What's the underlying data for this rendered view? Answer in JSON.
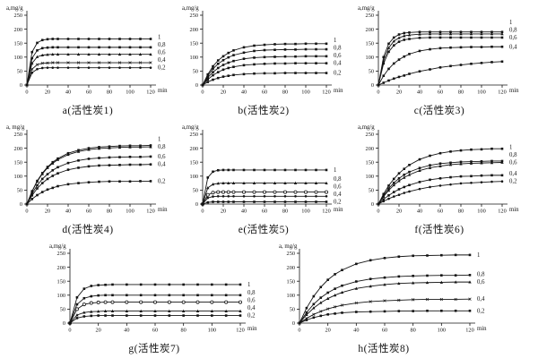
{
  "colors": {
    "line": "#141414",
    "text": "#141414",
    "background": "#ffffff"
  },
  "chart_data": [
    {
      "id": "a",
      "type": "line",
      "caption": "a(活性炭1)",
      "ylabel": "a,mg/g",
      "x_unit": "min",
      "ylim": [
        0,
        250
      ],
      "y_ticks": [
        0,
        50,
        100,
        150,
        200,
        250
      ],
      "x_ticks": [
        0,
        20,
        40,
        60,
        80,
        100,
        120
      ],
      "x": [
        0,
        5,
        10,
        15,
        20,
        25,
        30,
        40,
        50,
        60,
        70,
        80,
        90,
        100,
        110,
        120
      ],
      "series": [
        {
          "name": "1",
          "marker": "square",
          "values": [
            0,
            118,
            151,
            161,
            164,
            165,
            165,
            165,
            165,
            165,
            165,
            165,
            165,
            165,
            165,
            165
          ]
        },
        {
          "name": "0,8",
          "marker": "square",
          "values": [
            0,
            96,
            124,
            132,
            134,
            135,
            135,
            135,
            135,
            135,
            135,
            135,
            135,
            135,
            135,
            135
          ]
        },
        {
          "name": "0,6",
          "marker": "triangle",
          "values": [
            0,
            78,
            101,
            107,
            109,
            110,
            110,
            110,
            110,
            110,
            110,
            110,
            110,
            110,
            110,
            110
          ]
        },
        {
          "name": "0,4",
          "marker": "x",
          "values": [
            0,
            57,
            73,
            78,
            79,
            80,
            80,
            80,
            80,
            80,
            80,
            80,
            80,
            80,
            80,
            80
          ]
        },
        {
          "name": "0,2",
          "marker": "circle",
          "values": [
            0,
            44,
            57,
            61,
            62,
            62,
            62,
            62,
            62,
            62,
            62,
            62,
            62,
            62,
            62,
            62
          ]
        }
      ]
    },
    {
      "id": "b",
      "type": "line",
      "caption": "b(活性炭2)",
      "ylabel": "a,mg/g",
      "x_unit": "min",
      "ylim": [
        0,
        250
      ],
      "y_ticks": [
        0,
        50,
        100,
        150,
        200,
        250
      ],
      "x_ticks": [
        0,
        20,
        40,
        60,
        80,
        100,
        120
      ],
      "x": [
        0,
        5,
        10,
        15,
        20,
        25,
        30,
        40,
        50,
        60,
        70,
        80,
        90,
        100,
        110,
        120
      ],
      "series": [
        {
          "name": "1",
          "marker": "square",
          "values": [
            0,
            38,
            67,
            88,
            103,
            115,
            124,
            135,
            141,
            144,
            146,
            147,
            147,
            148,
            148,
            148
          ]
        },
        {
          "name": "0,8",
          "marker": "square",
          "values": [
            0,
            33,
            58,
            76,
            89,
            99,
            107,
            116,
            122,
            125,
            126,
            127,
            127,
            128,
            128,
            128
          ]
        },
        {
          "name": "0,6",
          "marker": "square",
          "values": [
            0,
            27,
            46,
            61,
            72,
            80,
            86,
            94,
            98,
            100,
            101,
            102,
            102,
            103,
            103,
            103
          ]
        },
        {
          "name": "0,4",
          "marker": "square",
          "values": [
            0,
            20,
            35,
            46,
            55,
            61,
            65,
            71,
            74,
            76,
            77,
            77,
            78,
            78,
            78,
            78
          ]
        },
        {
          "name": "0,2",
          "marker": "square",
          "values": [
            0,
            11,
            19,
            25,
            30,
            33,
            36,
            39,
            41,
            42,
            42,
            43,
            43,
            43,
            43,
            43
          ]
        }
      ]
    },
    {
      "id": "c",
      "type": "line",
      "caption": "c(活性炭3)",
      "ylabel": "a,mg/g",
      "x_unit": "min",
      "ylim": [
        0,
        250
      ],
      "y_ticks": [
        0,
        50,
        100,
        150,
        200,
        250
      ],
      "x_ticks": [
        0,
        20,
        40,
        60,
        80,
        100,
        120
      ],
      "x": [
        0,
        5,
        10,
        15,
        20,
        25,
        30,
        40,
        50,
        60,
        70,
        80,
        90,
        100,
        110,
        120
      ],
      "series": [
        {
          "name": "1",
          "marker": "square",
          "values": [
            0,
            100,
            148,
            170,
            181,
            186,
            188,
            190,
            190,
            190,
            190,
            190,
            190,
            190,
            190,
            190
          ]
        },
        {
          "name": "0,8",
          "marker": "triangle",
          "values": [
            0,
            87,
            133,
            157,
            169,
            176,
            179,
            182,
            183,
            183,
            183,
            183,
            183,
            183,
            183,
            183
          ]
        },
        {
          "name": "0,6",
          "marker": "square",
          "values": [
            0,
            77,
            119,
            142,
            155,
            162,
            165,
            169,
            170,
            170,
            170,
            170,
            170,
            170,
            170,
            170
          ]
        },
        {
          "name": "0,4",
          "marker": "square",
          "values": [
            0,
            33,
            58,
            77,
            91,
            102,
            111,
            122,
            128,
            132,
            134,
            135,
            136,
            136,
            137,
            137
          ]
        },
        {
          "name": "",
          "marker": "square",
          "values": [
            0,
            8,
            16,
            23,
            29,
            34,
            40,
            49,
            56,
            63,
            68,
            72,
            76,
            79,
            82,
            84
          ]
        }
      ]
    },
    {
      "id": "d",
      "type": "line",
      "caption": "d(活性炭4)",
      "ylabel": "a, mg/g",
      "x_unit": "min",
      "ylim": [
        0,
        250
      ],
      "y_ticks": [
        0,
        50,
        100,
        150,
        200,
        250
      ],
      "x_ticks": [
        0,
        20,
        40,
        60,
        80,
        100,
        120
      ],
      "x": [
        0,
        5,
        10,
        15,
        20,
        25,
        30,
        40,
        50,
        60,
        70,
        80,
        90,
        100,
        110,
        120
      ],
      "series": [
        {
          "name": "1",
          "marker": "square",
          "values": [
            0,
            46,
            83,
            111,
            133,
            150,
            163,
            182,
            193,
            200,
            204,
            206,
            208,
            209,
            209,
            210
          ]
        },
        {
          "name": "0,8",
          "marker": "triangle",
          "values": [
            0,
            45,
            81,
            108,
            130,
            146,
            159,
            177,
            188,
            195,
            199,
            201,
            203,
            204,
            204,
            205
          ]
        },
        {
          "name": "0,6",
          "marker": "square",
          "values": [
            0,
            38,
            67,
            90,
            107,
            121,
            132,
            147,
            156,
            162,
            165,
            167,
            168,
            169,
            169,
            170
          ]
        },
        {
          "name": "0,4",
          "marker": "square",
          "values": [
            0,
            31,
            56,
            75,
            90,
            101,
            110,
            123,
            130,
            135,
            138,
            139,
            140,
            141,
            141,
            142
          ]
        },
        {
          "name": "0,2",
          "marker": "square",
          "values": [
            0,
            18,
            32,
            43,
            52,
            58,
            64,
            71,
            75,
            78,
            80,
            81,
            81,
            81,
            82,
            82
          ]
        }
      ]
    },
    {
      "id": "e",
      "type": "line",
      "caption": "e(活性炭5)",
      "ylabel": "a,mg/g",
      "x_unit": "min",
      "ylim": [
        0,
        250
      ],
      "y_ticks": [
        0,
        50,
        100,
        150,
        200,
        250
      ],
      "x_ticks": [
        0,
        20,
        40,
        60,
        80,
        100,
        120
      ],
      "x": [
        0,
        5,
        10,
        15,
        20,
        25,
        30,
        40,
        50,
        60,
        70,
        80,
        90,
        100,
        110,
        120
      ],
      "series": [
        {
          "name": "1",
          "marker": "square",
          "values": [
            0,
            95,
            116,
            121,
            122,
            122,
            122,
            122,
            122,
            122,
            122,
            122,
            122,
            122,
            122,
            122
          ]
        },
        {
          "name": "0,8",
          "marker": "triangle",
          "values": [
            0,
            58,
            71,
            74,
            75,
            75,
            75,
            75,
            75,
            75,
            75,
            75,
            75,
            75,
            75,
            75
          ]
        },
        {
          "name": "0,6",
          "marker": "circle-open",
          "values": [
            0,
            33,
            41,
            43,
            43,
            43,
            43,
            43,
            43,
            43,
            43,
            43,
            43,
            43,
            43,
            43
          ]
        },
        {
          "name": "0,4",
          "marker": "circle",
          "values": [
            0,
            22,
            27,
            28,
            28,
            28,
            28,
            28,
            28,
            28,
            28,
            28,
            28,
            28,
            28,
            28
          ]
        },
        {
          "name": "0,2",
          "marker": "square",
          "values": [
            0,
            6,
            8,
            8,
            8,
            8,
            8,
            8,
            8,
            8,
            8,
            8,
            8,
            8,
            8,
            8
          ]
        }
      ]
    },
    {
      "id": "f",
      "type": "line",
      "caption": "f(活性炭6)",
      "ylabel": "a,mg/g",
      "x_unit": "min",
      "ylim": [
        0,
        250
      ],
      "y_ticks": [
        0,
        50,
        100,
        150,
        200,
        250
      ],
      "x_ticks": [
        0,
        20,
        40,
        60,
        80,
        100,
        120
      ],
      "x": [
        0,
        5,
        10,
        15,
        20,
        25,
        30,
        40,
        50,
        60,
        70,
        80,
        90,
        100,
        110,
        120
      ],
      "series": [
        {
          "name": "1",
          "marker": "square",
          "values": [
            0,
            36,
            66,
            90,
            110,
            126,
            140,
            160,
            173,
            182,
            188,
            192,
            195,
            196,
            198,
            198
          ]
        },
        {
          "name": "0,8",
          "marker": "square",
          "values": [
            0,
            31,
            56,
            76,
            92,
            105,
            115,
            129,
            139,
            145,
            148,
            151,
            152,
            153,
            154,
            154
          ]
        },
        {
          "name": "0,6",
          "marker": "triangle",
          "values": [
            0,
            27,
            49,
            68,
            83,
            95,
            105,
            120,
            130,
            136,
            141,
            144,
            146,
            147,
            148,
            149
          ]
        },
        {
          "name": "0,4",
          "marker": "square",
          "values": [
            0,
            17,
            31,
            43,
            53,
            61,
            68,
            79,
            87,
            92,
            96,
            99,
            100,
            102,
            103,
            103
          ]
        },
        {
          "name": "0,2",
          "marker": "circle",
          "values": [
            0,
            10,
            19,
            27,
            33,
            40,
            45,
            54,
            61,
            66,
            70,
            74,
            76,
            78,
            80,
            81
          ]
        }
      ]
    },
    {
      "id": "g",
      "type": "line",
      "caption": "g(活性炭7)",
      "ylabel": "a,mg/g",
      "x_unit": "min",
      "ylim": [
        0,
        250
      ],
      "y_ticks": [
        0,
        50,
        100,
        150,
        200,
        250
      ],
      "x_ticks": [
        0,
        20,
        40,
        60,
        80,
        100,
        120
      ],
      "x": [
        0,
        5,
        10,
        15,
        20,
        25,
        30,
        40,
        50,
        60,
        70,
        80,
        90,
        100,
        110,
        120
      ],
      "series": [
        {
          "name": "1",
          "marker": "square",
          "values": [
            0,
            92,
            123,
            133,
            136,
            137,
            138,
            138,
            138,
            138,
            138,
            138,
            138,
            138,
            138,
            138
          ]
        },
        {
          "name": "0,8",
          "marker": "square",
          "values": [
            0,
            67,
            89,
            96,
            99,
            100,
            100,
            100,
            100,
            100,
            100,
            100,
            100,
            100,
            100,
            100
          ]
        },
        {
          "name": "0,6",
          "marker": "circle-open",
          "values": [
            0,
            50,
            67,
            72,
            74,
            75,
            75,
            75,
            75,
            75,
            75,
            75,
            75,
            75,
            75,
            75
          ]
        },
        {
          "name": "0,4",
          "marker": "triangle",
          "values": [
            0,
            29,
            38,
            41,
            42,
            43,
            43,
            43,
            43,
            43,
            43,
            43,
            43,
            43,
            43,
            43
          ]
        },
        {
          "name": "0,2",
          "marker": "square",
          "values": [
            0,
            18,
            24,
            26,
            27,
            27,
            27,
            27,
            27,
            27,
            27,
            27,
            27,
            27,
            27,
            27
          ]
        }
      ]
    },
    {
      "id": "h",
      "type": "line",
      "caption": "h(活性炭8)",
      "ylabel": "a, mg/g",
      "x_unit": "min",
      "ylim": [
        0,
        250
      ],
      "y_ticks": [
        0,
        50,
        100,
        150,
        200,
        250
      ],
      "x_ticks": [
        0,
        20,
        40,
        60,
        80,
        100,
        120
      ],
      "x": [
        0,
        5,
        10,
        15,
        20,
        25,
        30,
        40,
        50,
        60,
        70,
        80,
        90,
        100,
        110,
        120
      ],
      "series": [
        {
          "name": "1",
          "marker": "square",
          "values": [
            0,
            54,
            96,
            129,
            155,
            175,
            190,
            212,
            225,
            233,
            238,
            241,
            242,
            243,
            244,
            244
          ]
        },
        {
          "name": "0,8",
          "marker": "square",
          "values": [
            0,
            38,
            68,
            91,
            109,
            123,
            134,
            149,
            158,
            163,
            167,
            169,
            170,
            171,
            171,
            172
          ]
        },
        {
          "name": "0,6",
          "marker": "triangle",
          "values": [
            0,
            30,
            54,
            73,
            88,
            100,
            110,
            124,
            132,
            138,
            142,
            144,
            145,
            146,
            147,
            147
          ]
        },
        {
          "name": "0,4",
          "marker": "x",
          "values": [
            0,
            17,
            31,
            42,
            51,
            58,
            64,
            72,
            77,
            80,
            82,
            84,
            85,
            85,
            85,
            86
          ]
        },
        {
          "name": "0,2",
          "marker": "square",
          "values": [
            0,
            11,
            20,
            26,
            31,
            34,
            37,
            40,
            41,
            42,
            43,
            43,
            44,
            44,
            44,
            44
          ]
        }
      ]
    }
  ]
}
